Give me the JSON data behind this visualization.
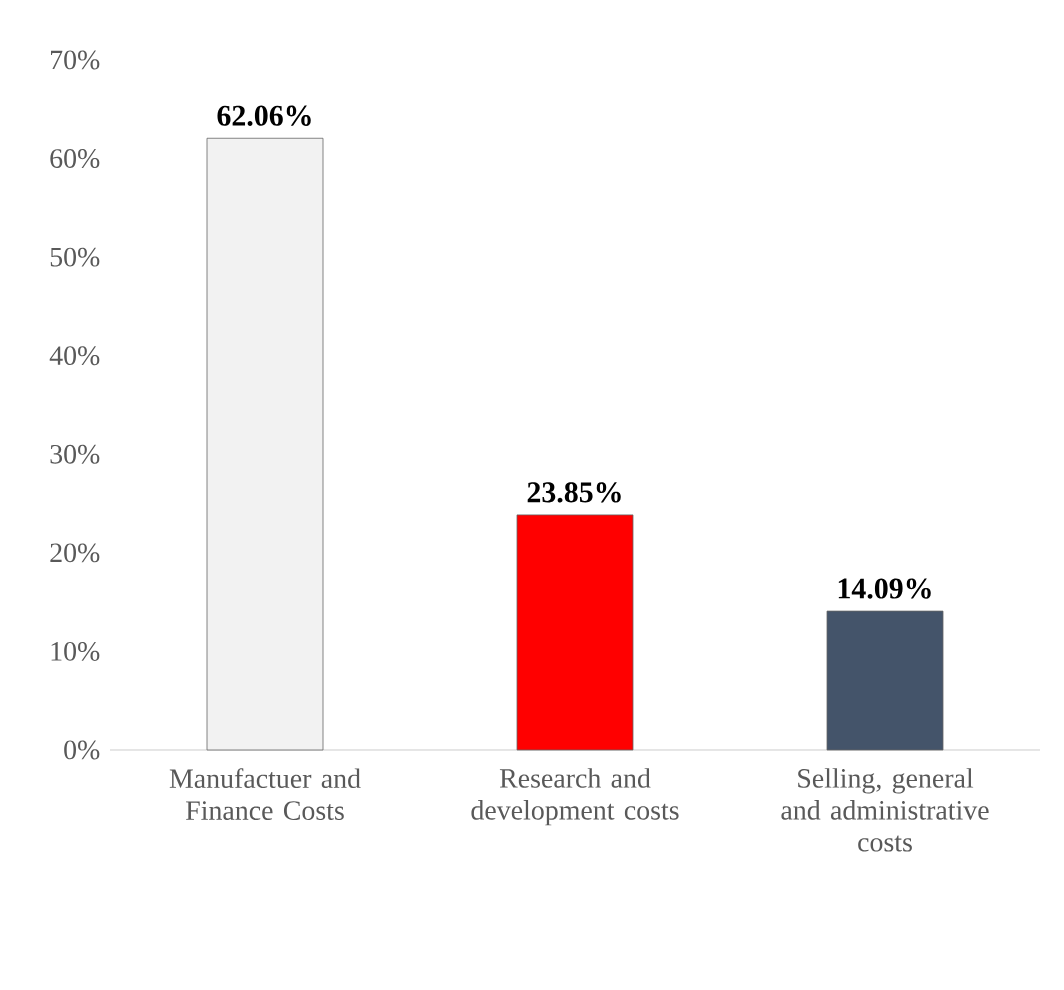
{
  "chart_data": {
    "type": "bar",
    "categories": [
      "Manufactuer and Finance Costs",
      "Research and development costs",
      "Selling, general and administrative costs"
    ],
    "values": [
      62.06,
      23.85,
      14.09
    ],
    "colors": [
      "#f2f2f2",
      "#ff0000",
      "#44546a"
    ],
    "value_labels": [
      "62.06%",
      "23.85%",
      "14.09%"
    ],
    "ylim": [
      0,
      70
    ],
    "yticks": [
      {
        "value": 0,
        "label": "0%"
      },
      {
        "value": 10,
        "label": "10%"
      },
      {
        "value": 20,
        "label": "20%"
      },
      {
        "value": 30,
        "label": "30%"
      },
      {
        "value": 40,
        "label": "40%"
      },
      {
        "value": 50,
        "label": "50%"
      },
      {
        "value": 60,
        "label": "60%"
      },
      {
        "value": 70,
        "label": "70%"
      }
    ]
  }
}
